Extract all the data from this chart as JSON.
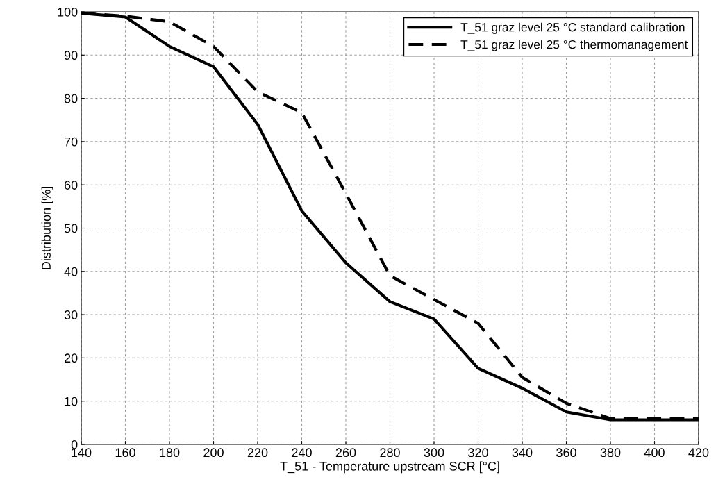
{
  "chart_data": {
    "type": "line",
    "xlabel": "T_51 - Temperature upstream SCR [°C]",
    "ylabel": "Distribution [%]",
    "x": [
      140,
      160,
      180,
      200,
      220,
      240,
      260,
      280,
      300,
      320,
      340,
      360,
      380,
      400,
      420
    ],
    "series": [
      {
        "name": "T_51 graz level 25 °C standard calibration",
        "color": "#000000",
        "line_style": "solid",
        "values": [
          99.7,
          98.8,
          92,
          87.3,
          74,
          54,
          42,
          33,
          29,
          17.6,
          13,
          7.5,
          5.7,
          5.7,
          5.7
        ]
      },
      {
        "name": "T_51 graz level 25 °C thermomanagement",
        "color": "#000000",
        "line_style": "dashed",
        "values": [
          99.7,
          99,
          97.7,
          92,
          81.5,
          76.7,
          58,
          39,
          33.5,
          28,
          15.5,
          9.5,
          6,
          6,
          6
        ]
      }
    ],
    "xlim": [
      140,
      420
    ],
    "xticks": [
      140,
      160,
      180,
      200,
      220,
      240,
      260,
      280,
      300,
      320,
      340,
      360,
      380,
      400,
      420
    ],
    "ylim": [
      0,
      100
    ],
    "yticks": [
      0,
      10,
      20,
      30,
      40,
      50,
      60,
      70,
      80,
      90,
      100
    ],
    "grid": true,
    "legend": "top right",
    "marker": "none"
  }
}
